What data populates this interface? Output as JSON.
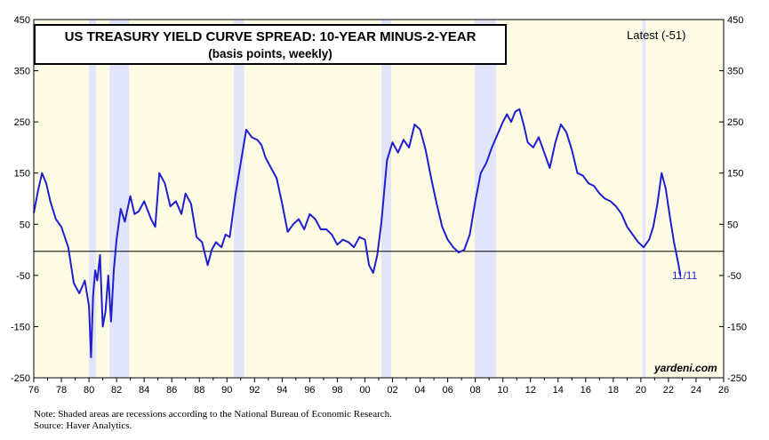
{
  "chart_data": {
    "type": "line",
    "title": "US TREASURY YIELD CURVE SPREAD: 10-YEAR MINUS-2-YEAR",
    "subtitle": "(basis points, weekly)",
    "latest_label": "Latest (-51)",
    "last_date_label": "11/11",
    "brand": "yardeni.com",
    "ylim": [
      -250,
      450
    ],
    "yticks": [
      -250,
      -150,
      -50,
      50,
      150,
      250,
      350,
      450
    ],
    "xlim": [
      1976,
      2026
    ],
    "xtick_labels": [
      "76",
      "78",
      "80",
      "82",
      "84",
      "86",
      "88",
      "90",
      "92",
      "94",
      "96",
      "98",
      "00",
      "02",
      "04",
      "06",
      "08",
      "10",
      "12",
      "14",
      "16",
      "18",
      "20",
      "22",
      "24",
      "26"
    ],
    "recessions": [
      [
        1980.0,
        1980.5
      ],
      [
        1981.5,
        1982.9
      ],
      [
        1990.5,
        1991.25
      ],
      [
        2001.2,
        2001.9
      ],
      [
        2007.95,
        2009.5
      ],
      [
        2020.1,
        2020.35
      ]
    ],
    "series": [
      {
        "color": "#1f1fd0",
        "x": [
          1976.0,
          1976.3,
          1976.6,
          1976.9,
          1977.2,
          1977.6,
          1978.0,
          1978.5,
          1978.9,
          1979.3,
          1979.7,
          1980.0,
          1980.15,
          1980.3,
          1980.45,
          1980.6,
          1980.8,
          1981.0,
          1981.2,
          1981.4,
          1981.6,
          1981.8,
          1982.0,
          1982.3,
          1982.6,
          1983.0,
          1983.3,
          1983.6,
          1984.0,
          1984.5,
          1984.8,
          1985.1,
          1985.5,
          1985.9,
          1986.3,
          1986.7,
          1987.0,
          1987.4,
          1987.8,
          1988.2,
          1988.6,
          1988.9,
          1989.2,
          1989.6,
          1989.9,
          1990.2,
          1990.6,
          1991.0,
          1991.4,
          1991.8,
          1992.2,
          1992.5,
          1992.8,
          1993.2,
          1993.6,
          1994.0,
          1994.4,
          1994.8,
          1995.2,
          1995.6,
          1996.0,
          1996.4,
          1996.8,
          1997.2,
          1997.6,
          1998.0,
          1998.4,
          1998.8,
          1999.2,
          1999.6,
          2000.0,
          2000.3,
          2000.6,
          2000.9,
          2001.2,
          2001.6,
          2002.0,
          2002.4,
          2002.8,
          2003.2,
          2003.6,
          2004.0,
          2004.4,
          2004.8,
          2005.2,
          2005.6,
          2006.0,
          2006.4,
          2006.8,
          2007.2,
          2007.6,
          2008.0,
          2008.4,
          2008.8,
          2009.2,
          2009.6,
          2010.0,
          2010.3,
          2010.6,
          2010.9,
          2011.2,
          2011.5,
          2011.8,
          2012.2,
          2012.6,
          2013.0,
          2013.4,
          2013.8,
          2014.2,
          2014.6,
          2015.0,
          2015.4,
          2015.8,
          2016.2,
          2016.6,
          2017.0,
          2017.4,
          2017.8,
          2018.2,
          2018.6,
          2019.0,
          2019.4,
          2019.8,
          2020.2,
          2020.6,
          2020.9,
          2021.2,
          2021.5,
          2021.8,
          2022.1,
          2022.4,
          2022.7,
          2022.87
        ],
        "values": [
          72,
          115,
          150,
          130,
          95,
          60,
          45,
          5,
          -65,
          -85,
          -60,
          -110,
          -210,
          -90,
          -40,
          -60,
          -10,
          -150,
          -120,
          -50,
          -140,
          -40,
          20,
          80,
          55,
          105,
          70,
          75,
          95,
          60,
          45,
          150,
          130,
          85,
          95,
          70,
          110,
          90,
          25,
          15,
          -30,
          0,
          15,
          5,
          30,
          25,
          105,
          170,
          235,
          220,
          215,
          205,
          180,
          160,
          140,
          90,
          35,
          50,
          60,
          40,
          70,
          60,
          40,
          40,
          30,
          10,
          20,
          15,
          5,
          25,
          20,
          -30,
          -45,
          -10,
          55,
          175,
          210,
          190,
          215,
          200,
          245,
          235,
          195,
          140,
          90,
          45,
          20,
          5,
          -5,
          0,
          30,
          95,
          150,
          170,
          200,
          225,
          250,
          265,
          250,
          270,
          275,
          245,
          210,
          200,
          220,
          190,
          160,
          210,
          245,
          230,
          195,
          150,
          145,
          130,
          125,
          110,
          100,
          95,
          85,
          70,
          45,
          30,
          15,
          5,
          20,
          45,
          90,
          150,
          120,
          65,
          15,
          -25,
          -51
        ]
      }
    ],
    "note": "Note: Shaded areas are recessions according to the National Bureau of Economic Research.",
    "source": "Source: Haver Analytics."
  }
}
